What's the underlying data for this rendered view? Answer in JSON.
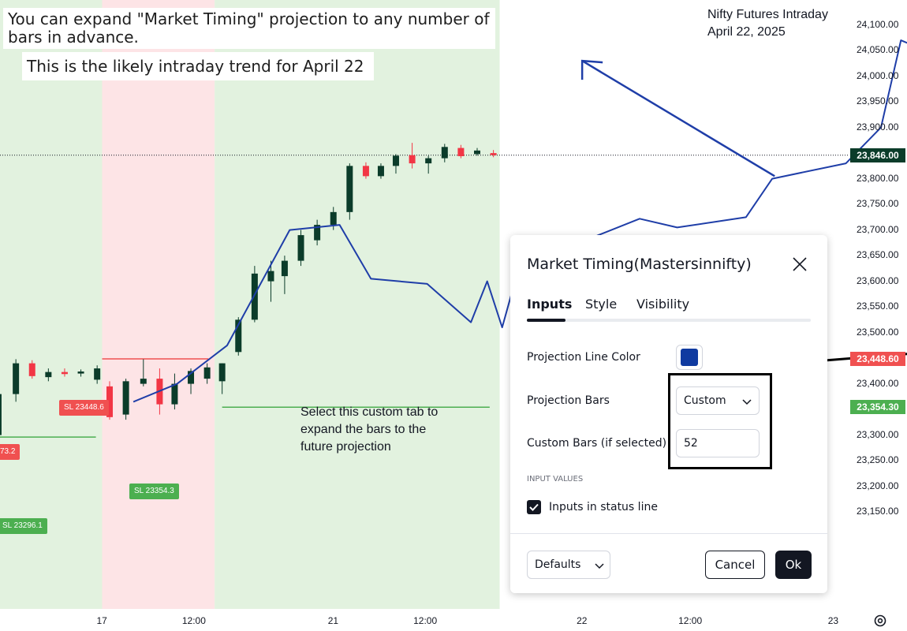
{
  "chart_data": {
    "type": "candlestick",
    "title": "Nifty Futures Intraday",
    "subtitle": "April 22, 2025",
    "ylim": [
      23125,
      24130
    ],
    "yticks": [
      "24,100.00",
      "24,050.00",
      "24,000.00",
      "23,950.00",
      "23,900.00",
      "23,850.00",
      "23,800.00",
      "23,750.00",
      "23,700.00",
      "23,650.00",
      "23,600.00",
      "23,550.00",
      "23,500.00",
      "23,450.00",
      "23,400.00",
      "23,350.00",
      "23,300.00",
      "23,250.00",
      "23,200.00",
      "23,150.00"
    ],
    "ytick_values": [
      24100,
      24050,
      24000,
      23950,
      23900,
      23850,
      23800,
      23750,
      23700,
      23650,
      23600,
      23550,
      23500,
      23450,
      23400,
      23350,
      23300,
      23250,
      23200,
      23150
    ],
    "xticks": [
      "17",
      "12:00",
      "21",
      "12:00",
      "22",
      "12:00",
      "23"
    ],
    "price_tags": [
      {
        "label": "23,846.00",
        "value": 23846,
        "color": "#0b3c2a"
      },
      {
        "label": "23,448.60",
        "value": 23448.6,
        "color": "#f05050"
      },
      {
        "label": "23,354.30",
        "value": 23354.3,
        "color": "#4caf50"
      }
    ],
    "current_price": 23846,
    "background_bands": [
      {
        "from": 0.0,
        "to": 0.13,
        "color": "#fde4e6"
      },
      {
        "from": 0.13,
        "to": 1.0,
        "color": "#e2f2df"
      },
      {
        "from": 1.0,
        "to": 1.9,
        "color": "#fde4e6"
      },
      {
        "from": 1.9,
        "to": 4.18,
        "color": "#e2f2df"
      }
    ],
    "candles": [
      {
        "t": 0.05,
        "o": 23300,
        "h": 23330,
        "l": 23292,
        "c": 23298
      },
      {
        "t": 0.17,
        "o": 23300,
        "h": 23395,
        "l": 23255,
        "c": 23380
      },
      {
        "t": 0.31,
        "o": 23380,
        "h": 23448,
        "l": 23365,
        "c": 23440
      },
      {
        "t": 0.44,
        "o": 23440,
        "h": 23446,
        "l": 23410,
        "c": 23415
      },
      {
        "t": 0.57,
        "o": 23413,
        "h": 23430,
        "l": 23405,
        "c": 23423
      },
      {
        "t": 0.7,
        "o": 23423,
        "h": 23430,
        "l": 23414,
        "c": 23419
      },
      {
        "t": 0.83,
        "o": 23420,
        "h": 23428,
        "l": 23414,
        "c": 23424
      },
      {
        "t": 0.96,
        "o": 23408,
        "h": 23436,
        "l": 23400,
        "c": 23430
      },
      {
        "t": 1.06,
        "o": 23395,
        "h": 23405,
        "l": 23330,
        "c": 23335
      },
      {
        "t": 1.19,
        "o": 23340,
        "h": 23410,
        "l": 23330,
        "c": 23405
      },
      {
        "t": 1.33,
        "o": 23400,
        "h": 23448,
        "l": 23395,
        "c": 23410
      },
      {
        "t": 1.46,
        "o": 23410,
        "h": 23430,
        "l": 23340,
        "c": 23360
      },
      {
        "t": 1.58,
        "o": 23360,
        "h": 23420,
        "l": 23350,
        "c": 23400
      },
      {
        "t": 1.71,
        "o": 23400,
        "h": 23430,
        "l": 23380,
        "c": 23425
      },
      {
        "t": 1.84,
        "o": 23410,
        "h": 23440,
        "l": 23400,
        "c": 23432
      },
      {
        "t": 1.96,
        "o": 23405,
        "h": 23440,
        "l": 23380,
        "c": 23440
      },
      {
        "t": 2.09,
        "o": 23462,
        "h": 23530,
        "l": 23455,
        "c": 23525
      },
      {
        "t": 2.22,
        "o": 23525,
        "h": 23630,
        "l": 23520,
        "c": 23615
      },
      {
        "t": 2.35,
        "o": 23600,
        "h": 23640,
        "l": 23560,
        "c": 23620
      },
      {
        "t": 2.46,
        "o": 23610,
        "h": 23650,
        "l": 23575,
        "c": 23640
      },
      {
        "t": 2.59,
        "o": 23640,
        "h": 23700,
        "l": 23630,
        "c": 23690
      },
      {
        "t": 2.72,
        "o": 23680,
        "h": 23720,
        "l": 23670,
        "c": 23710
      },
      {
        "t": 2.85,
        "o": 23710,
        "h": 23745,
        "l": 23700,
        "c": 23735
      },
      {
        "t": 2.98,
        "o": 23735,
        "h": 23830,
        "l": 23720,
        "c": 23825
      },
      {
        "t": 3.11,
        "o": 23825,
        "h": 23832,
        "l": 23800,
        "c": 23805
      },
      {
        "t": 3.23,
        "o": 23805,
        "h": 23830,
        "l": 23800,
        "c": 23825
      },
      {
        "t": 3.35,
        "o": 23825,
        "h": 23848,
        "l": 23810,
        "c": 23845
      },
      {
        "t": 3.48,
        "o": 23846,
        "h": 23870,
        "l": 23820,
        "c": 23830
      },
      {
        "t": 3.61,
        "o": 23830,
        "h": 23845,
        "l": 23810,
        "c": 23840
      },
      {
        "t": 3.74,
        "o": 23840,
        "h": 23868,
        "l": 23832,
        "c": 23862
      },
      {
        "t": 3.87,
        "o": 23860,
        "h": 23866,
        "l": 23840,
        "c": 23844
      },
      {
        "t": 4.0,
        "o": 23848,
        "h": 23860,
        "l": 23845,
        "c": 23855
      },
      {
        "t": 4.13,
        "o": 23850,
        "h": 23856,
        "l": 23842,
        "c": 23846
      }
    ],
    "projection": {
      "color": "#1f3ea8",
      "points": [
        [
          1.25,
          23365
        ],
        [
          1.6,
          23400
        ],
        [
          2.0,
          23475
        ],
        [
          2.5,
          23700
        ],
        [
          2.9,
          23710
        ],
        [
          3.15,
          23605
        ],
        [
          3.6,
          23595
        ],
        [
          3.95,
          23520
        ],
        [
          4.08,
          23600
        ],
        [
          4.2,
          23510
        ],
        [
          4.4,
          23685
        ],
        [
          4.6,
          23630
        ],
        [
          4.78,
          23670
        ],
        [
          4.97,
          23690
        ],
        [
          5.3,
          23722
        ],
        [
          5.6,
          23705
        ],
        [
          6.15,
          23725
        ],
        [
          6.36,
          23800
        ],
        [
          6.95,
          23830
        ],
        [
          7.23,
          23900
        ],
        [
          7.39,
          24070
        ],
        [
          7.54,
          24055
        ]
      ]
    },
    "sl_lines": [
      {
        "label": "SL 23448.6",
        "value": 23448.6,
        "from": 1.0,
        "to": 1.85,
        "color": "#f05050"
      },
      {
        "label": "SL 23354.3",
        "value": 23354.3,
        "from": 1.96,
        "to": 4.1,
        "color": "#4caf50"
      },
      {
        "label": "SL 23296.1",
        "value": 23296.1,
        "from": 0.0,
        "to": 0.95,
        "color": "#4caf50"
      },
      {
        "label": "73.2",
        "value": 23390,
        "from": -0.1,
        "to": 0.1,
        "color": "#f05050"
      }
    ],
    "annotation_arrow": {
      "from": [
        6.38,
        23805
      ],
      "to": [
        4.84,
        24030
      ],
      "color": "#1f3ea8"
    },
    "callout_line": {
      "from": [
        5.68,
        23424
      ],
      "to": [
        8.55,
        23480
      ],
      "color": "#000000"
    }
  },
  "notes": {
    "line1": "You can expand \"Market Timing\" projection to any number of bars in advance.",
    "line2": "This is the likely intraday trend for April 22"
  },
  "callout_text": "Select this custom tab to expand the bars to the future projection",
  "dialog": {
    "title": "Market Timing(Mastersinnifty)",
    "tabs": [
      "Inputs",
      "Style",
      "Visibility"
    ],
    "active_tab": "Inputs",
    "projection_line_color_label": "Projection Line Color",
    "projection_line_color": "#0f3aa0",
    "projection_bars_label": "Projection Bars",
    "projection_bars_value": "Custom",
    "custom_bars_label": "Custom Bars (if selected)",
    "custom_bars_value": "52",
    "section_header": "INPUT VALUES",
    "status_line_label": "Inputs in status line",
    "status_line_checked": true,
    "defaults_label": "Defaults",
    "cancel_label": "Cancel",
    "ok_label": "Ok"
  }
}
